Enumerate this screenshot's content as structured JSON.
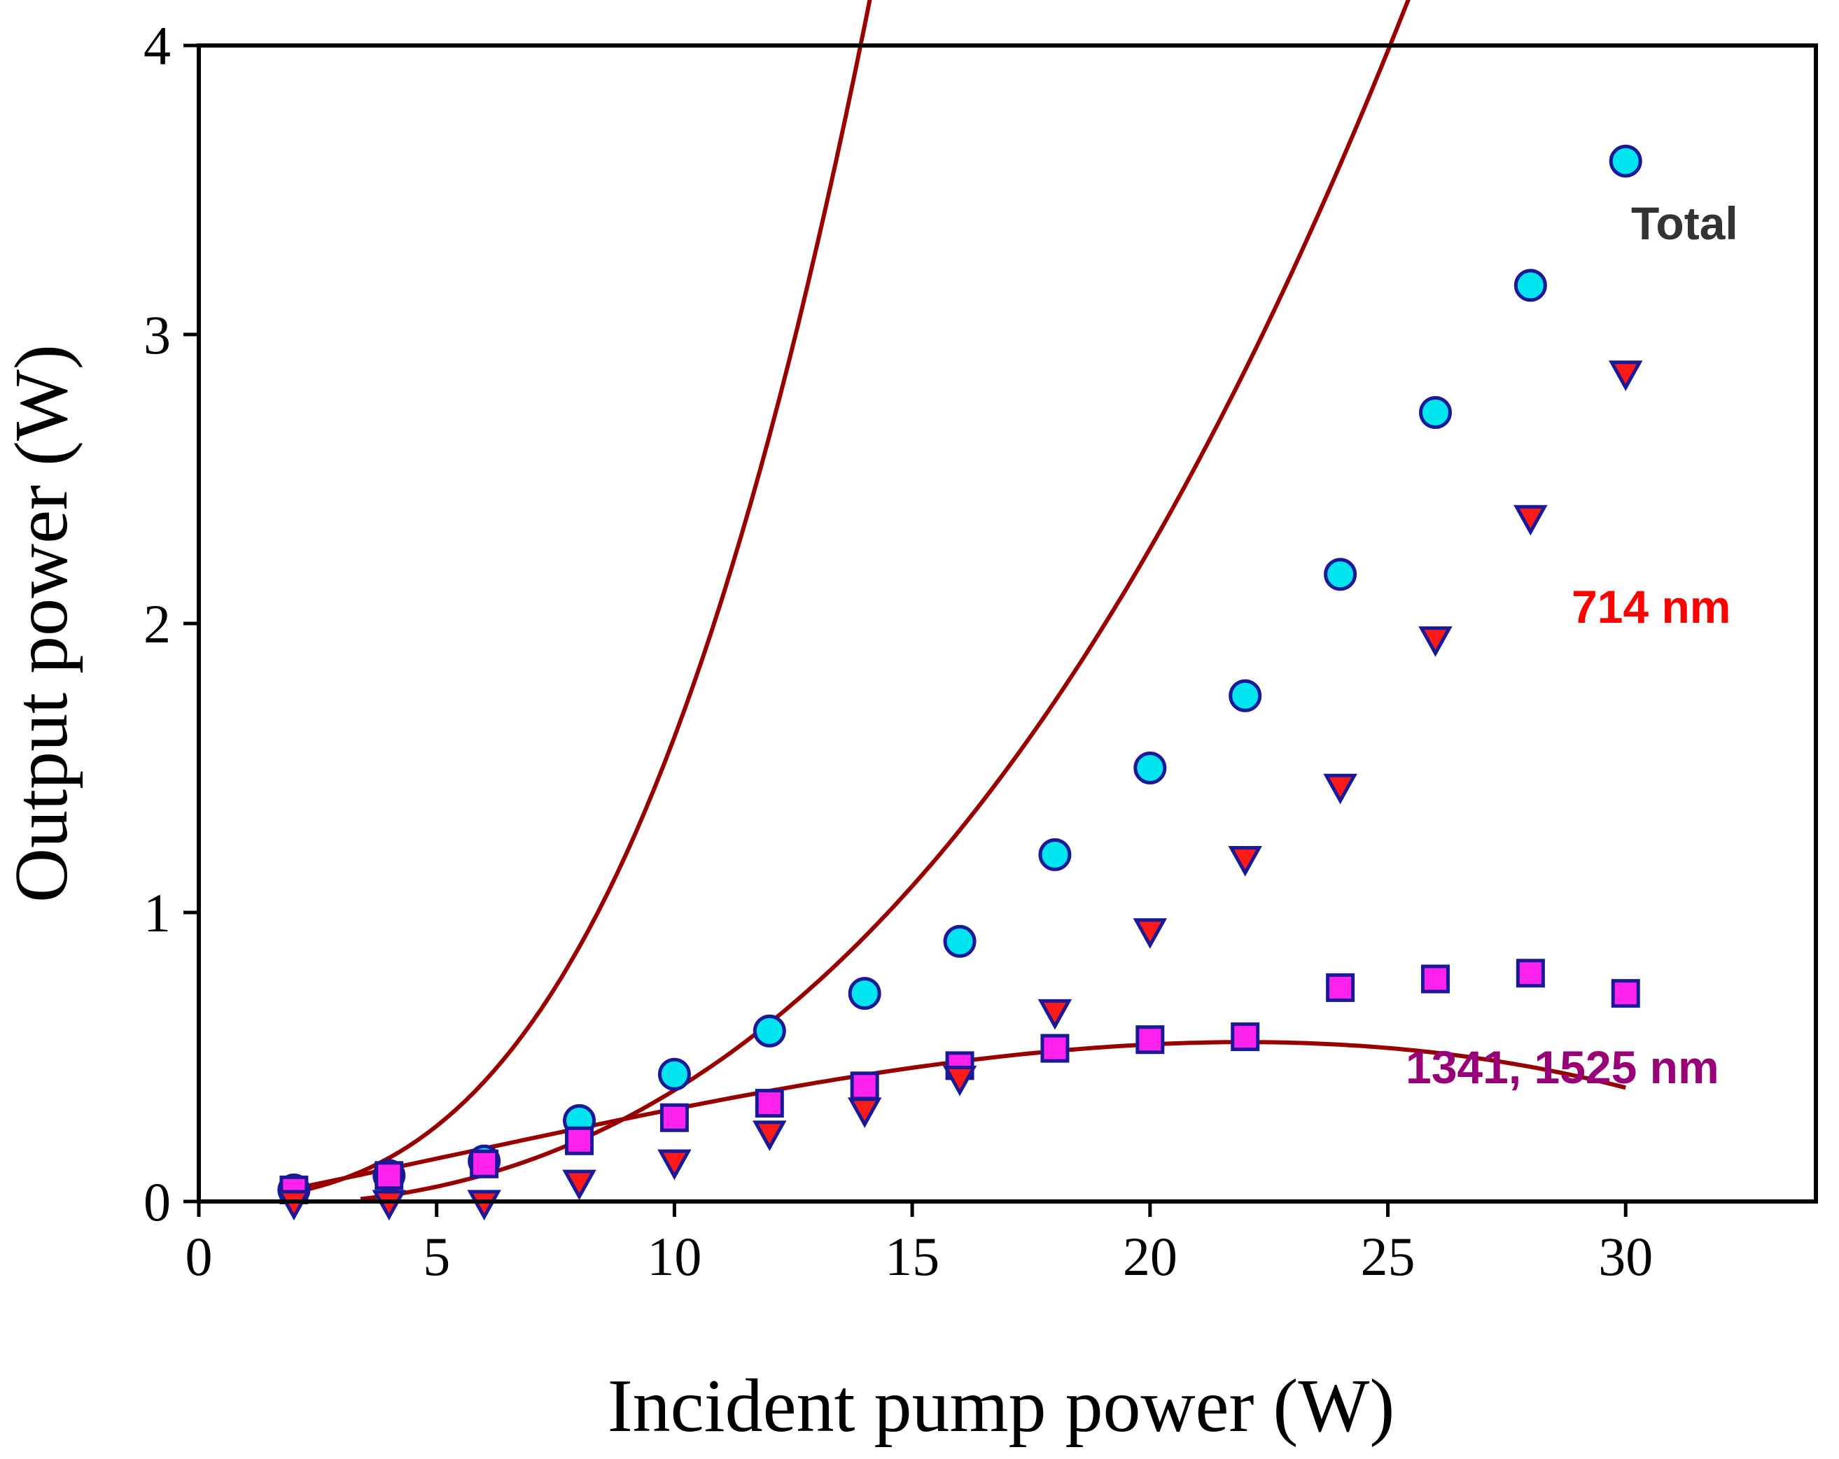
{
  "chart_data": {
    "type": "scatter",
    "xlabel": "Incident pump power (W)",
    "ylabel": "Output power (W)",
    "xlim": [
      0,
      34
    ],
    "ylim": [
      0,
      4
    ],
    "xticks": [
      0,
      5,
      10,
      15,
      20,
      25,
      30
    ],
    "yticks": [
      0,
      1,
      2,
      3,
      4
    ],
    "grid": false,
    "fit_color": "#990000",
    "series": [
      {
        "name": "Total",
        "marker": "circle",
        "fill": "#00e5f0",
        "edge": "#1a1a99",
        "label_color": "#333333",
        "x": [
          2,
          4,
          6,
          8,
          10,
          12,
          14,
          16,
          18,
          20,
          22,
          24,
          26,
          28,
          30
        ],
        "y": [
          0.04,
          0.09,
          0.14,
          0.28,
          0.44,
          0.59,
          0.72,
          0.9,
          1.2,
          1.5,
          1.75,
          2.17,
          2.73,
          3.17,
          3.6
        ],
        "fit": [
          0.0012,
          0.0037,
          0.0037,
          0.0
        ]
      },
      {
        "name": "714 nm",
        "marker": "triangle-down",
        "fill": "#ff1a1a",
        "edge": "#1a1a99",
        "label_color": "#ff0000",
        "x": [
          2,
          4,
          6,
          8,
          10,
          12,
          14,
          16,
          18,
          20,
          22,
          24,
          26,
          28,
          30
        ],
        "y": [
          0.0,
          0.0,
          0.0,
          0.07,
          0.14,
          0.24,
          0.32,
          0.43,
          0.66,
          0.94,
          1.19,
          1.44,
          1.95,
          2.37,
          2.87
        ],
        "fit": [
          0.00012,
          0.00385,
          -0.012,
          0.0
        ],
        "fit_start": 3.4
      },
      {
        "name": "1341, 1525 nm",
        "marker": "square",
        "fill": "#ff22ee",
        "edge": "#1a1a99",
        "label_color": "#990077",
        "x": [
          2,
          4,
          6,
          8,
          10,
          12,
          14,
          16,
          18,
          20,
          22,
          24,
          26,
          28,
          30
        ],
        "y": [
          0.04,
          0.09,
          0.13,
          0.21,
          0.29,
          0.34,
          0.4,
          0.47,
          0.53,
          0.56,
          0.57,
          0.74,
          0.77,
          0.79,
          0.72
        ],
        "fit": [
          -4.24e-05,
          0.00068,
          0.0316,
          -0.0213
        ]
      }
    ]
  }
}
